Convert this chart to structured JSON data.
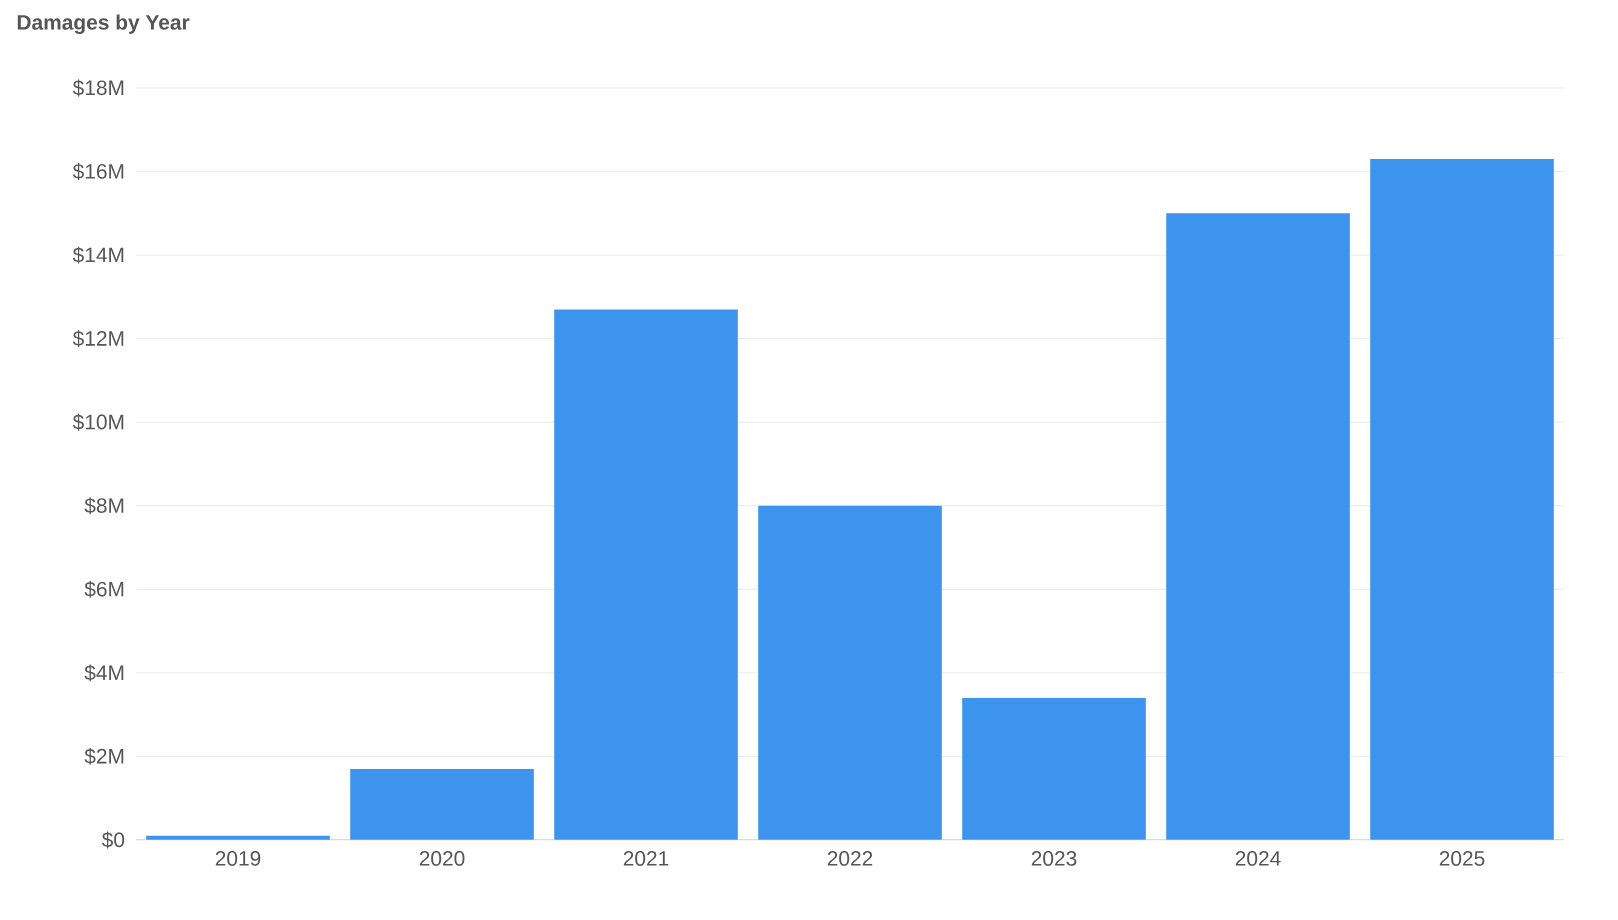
{
  "chart_data": {
    "type": "bar",
    "title": "Damages by Year",
    "categories": [
      "2019",
      "2020",
      "2021",
      "2022",
      "2023",
      "2024",
      "2025"
    ],
    "values": [
      0.1,
      1.7,
      12.7,
      8.0,
      3.4,
      15.0,
      16.3
    ],
    "color": "#3d94ee",
    "ylim": [
      0,
      18
    ],
    "yticks": [
      {
        "value": 0,
        "label": "$0"
      },
      {
        "value": 2,
        "label": "$2M"
      },
      {
        "value": 4,
        "label": "$4M"
      },
      {
        "value": 6,
        "label": "$6M"
      },
      {
        "value": 8,
        "label": "$8M"
      },
      {
        "value": 10,
        "label": "$10M"
      },
      {
        "value": 12,
        "label": "$12M"
      },
      {
        "value": 14,
        "label": "$14M"
      },
      {
        "value": 16,
        "label": "$16M"
      },
      {
        "value": 18,
        "label": "$18M"
      }
    ],
    "grid": "y"
  }
}
